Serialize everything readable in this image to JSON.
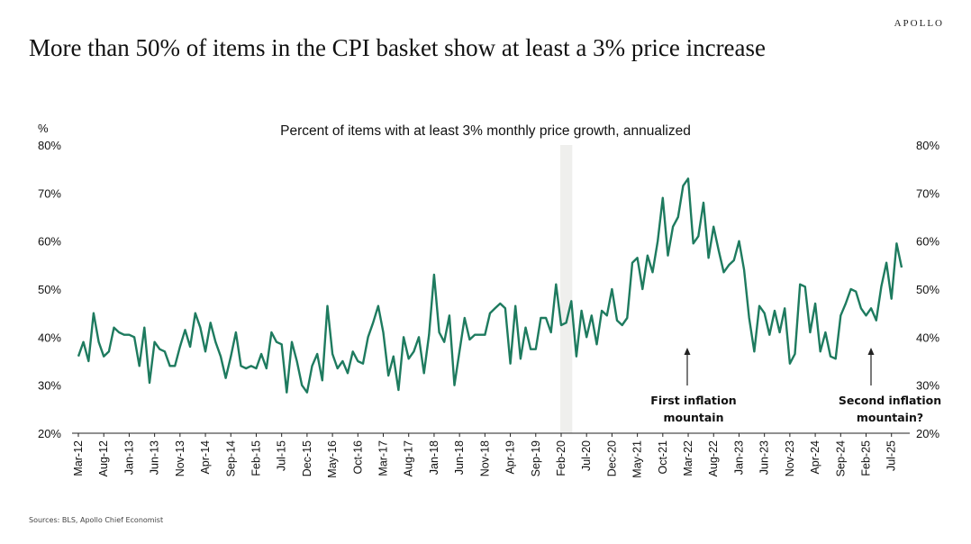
{
  "brand": "APOLLO",
  "title": "More than 50% of items in the CPI basket show at least a 3% price increase",
  "source": "Sources: BLS, Apollo Chief Economist",
  "chart_data": {
    "type": "line",
    "title": "Percent of items with at least 3% monthly price growth, annualized",
    "ylabel": "%",
    "ylim": [
      20,
      80
    ],
    "yticks": [
      "20%",
      "30%",
      "40%",
      "50%",
      "60%",
      "70%",
      "80%"
    ],
    "xticks": [
      "Mar-12",
      "Aug-12",
      "Jan-13",
      "Jun-13",
      "Nov-13",
      "Apr-14",
      "Sep-14",
      "Feb-15",
      "Jul-15",
      "Dec-15",
      "May-16",
      "Oct-16",
      "Mar-17",
      "Aug-17",
      "Jan-18",
      "Jun-18",
      "Nov-18",
      "Apr-19",
      "Sep-19",
      "Feb-20",
      "Jul-20",
      "Dec-20",
      "May-21",
      "Oct-21",
      "Mar-22",
      "Aug-22",
      "Jan-23",
      "Jun-23",
      "Nov-23",
      "Apr-24",
      "Sep-24",
      "Feb-25",
      "Jul-25"
    ],
    "start": "Mar-12",
    "color": "#1e7b5f",
    "shaded_period": {
      "from": "Feb-20",
      "to": "Apr-20",
      "color": "#efefed"
    },
    "annotations": [
      {
        "text_lines": [
          "First inflation",
          "mountain"
        ],
        "at": "Mar-22"
      },
      {
        "text_lines": [
          "Second inflation",
          "mountain?"
        ],
        "at": "Apr-25"
      }
    ],
    "values": [
      36,
      39,
      35,
      45,
      39,
      36,
      37,
      42,
      41,
      40.5,
      40.5,
      40,
      34,
      42,
      30.5,
      39,
      37.5,
      37,
      34,
      34,
      38,
      41.5,
      38,
      45,
      42,
      37,
      43,
      39,
      36,
      31.5,
      36,
      41,
      34,
      33.5,
      34,
      33.5,
      36.5,
      33.5,
      41,
      39,
      38.5,
      28.5,
      39,
      35,
      30,
      28.5,
      34,
      36.5,
      31,
      46.5,
      36.5,
      33.5,
      35,
      32.5,
      37,
      35,
      34.5,
      40,
      43,
      46.5,
      41,
      32,
      36,
      29,
      40,
      35.5,
      37,
      40,
      32.5,
      40.5,
      53,
      41,
      39,
      44.5,
      30,
      37,
      44,
      39.5,
      40.5,
      40.5,
      40.5,
      45,
      46,
      47,
      46,
      34.5,
      46.5,
      35.5,
      42,
      37.5,
      37.5,
      44,
      44,
      41,
      51,
      42.5,
      43,
      47.5,
      36,
      45.5,
      40,
      44.5,
      38.5,
      45.5,
      44.5,
      50,
      43.5,
      42.5,
      44,
      55.5,
      56.5,
      50,
      57,
      53.5,
      60,
      69,
      57,
      63,
      65,
      71.5,
      73,
      59.5,
      61,
      68,
      56.5,
      63,
      58,
      53.5,
      55,
      56,
      60,
      54,
      44,
      37,
      46.5,
      45,
      40.5,
      45.5,
      41,
      46,
      34.5,
      36.5,
      51,
      50.5,
      41,
      47,
      37,
      41,
      36,
      35.5,
      44.5,
      47,
      50,
      49.5,
      46,
      44.5,
      46,
      43.5,
      50.5,
      55.5,
      48,
      59.5,
      54.5
    ]
  }
}
